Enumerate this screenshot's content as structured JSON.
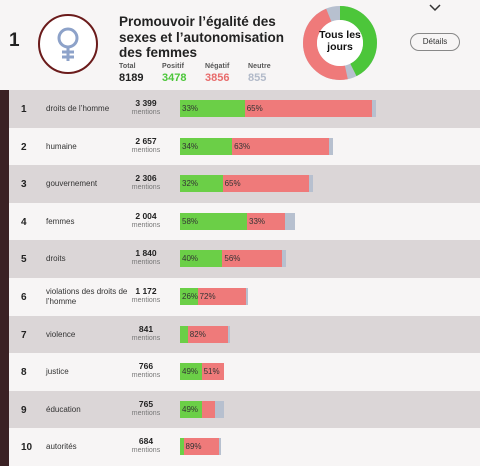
{
  "header": {
    "rank": "1",
    "title": "Promouvoir l’égalité des sexes et l’autonomisation des femmes",
    "stats": [
      {
        "label": "Total",
        "value": "8189",
        "color": "#222222"
      },
      {
        "label": "Positif",
        "value": "3478",
        "color": "#4cc63a"
      },
      {
        "label": "Négatif",
        "value": "3856",
        "color": "#e86c6c"
      },
      {
        "label": "Neutre",
        "value": "855",
        "color": "#b2bac9"
      }
    ],
    "donut_label": "Tous les jours",
    "details_label": "Détails",
    "chevron_icon": "chevron-down-icon",
    "emblem_icon": "gender-equality-icon"
  },
  "colors": {
    "positive": "#6bcf47",
    "negative": "#ef7a7a",
    "neutral": "#b7c0cf",
    "accent": "#3b2124"
  },
  "mentions_label": "mentions",
  "rows": [
    {
      "rank": "1",
      "term": "droits de l’homme",
      "count": "3 399",
      "pos_label": "33%",
      "neg_label": "65%",
      "pos": 33,
      "neg": 65,
      "neu": 2
    },
    {
      "rank": "2",
      "term": "humaine",
      "count": "2 657",
      "pos_label": "34%",
      "neg_label": "63%",
      "pos": 34,
      "neg": 63,
      "neu": 3
    },
    {
      "rank": "3",
      "term": "gouvernement",
      "count": "2 306",
      "pos_label": "32%",
      "neg_label": "65%",
      "pos": 32,
      "neg": 65,
      "neu": 3
    },
    {
      "rank": "4",
      "term": "femmes",
      "count": "2 004",
      "pos_label": "58%",
      "neg_label": "33%",
      "pos": 58,
      "neg": 33,
      "neu": 9
    },
    {
      "rank": "5",
      "term": "droits",
      "count": "1 840",
      "pos_label": "40%",
      "neg_label": "56%",
      "pos": 40,
      "neg": 56,
      "neu": 4
    },
    {
      "rank": "6",
      "term": "violations des droits de l’homme",
      "count": "1 172",
      "pos_label": "26%",
      "neg_label": "72%",
      "pos": 26,
      "neg": 72,
      "neu": 2
    },
    {
      "rank": "7",
      "term": "violence",
      "count": "841",
      "pos_label": "",
      "neg_label": "82%",
      "pos": 16,
      "neg": 82,
      "neu": 2
    },
    {
      "rank": "8",
      "term": "justice",
      "count": "766",
      "pos_label": "49%",
      "neg_label": "51%",
      "pos": 49,
      "neg": 51,
      "neu": 0
    },
    {
      "rank": "9",
      "term": "éducation",
      "count": "765",
      "pos_label": "49%",
      "neg_label": "",
      "pos": 49,
      "neg": 30,
      "neu": 21
    },
    {
      "rank": "10",
      "term": "autorités",
      "count": "684",
      "pos_label": "",
      "neg_label": "89%",
      "pos": 9,
      "neg": 89,
      "neu": 2
    }
  ]
}
